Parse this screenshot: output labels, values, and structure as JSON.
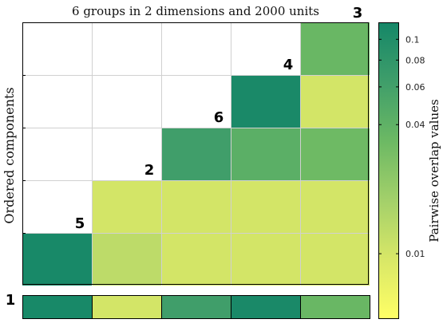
{
  "chart_data": {
    "type": "heatmap",
    "title": "6 groups in 2 dimensions and 2000 units",
    "ylabel": "Ordered components",
    "colorbar_label": "Pairwise overlap values",
    "colorbar_ticks": [
      "0.01",
      "0.04",
      "0.06",
      "0.08",
      "0.1"
    ],
    "colorbar_tick_values": [
      0.01,
      0.04,
      0.06,
      0.08,
      0.1
    ],
    "colorbar_range": [
      0.005,
      0.12
    ],
    "grid": true,
    "component_order": [
      1,
      5,
      2,
      6,
      4,
      3
    ],
    "component_labels": [
      "1",
      "5",
      "2",
      "6",
      "4",
      "3"
    ],
    "rows_top_to_bottom": [
      [
        null,
        null,
        null,
        null,
        0.035
      ],
      [
        null,
        null,
        null,
        0.112,
        0.01
      ],
      [
        null,
        null,
        0.063,
        0.043,
        0.033
      ],
      [
        null,
        0.01,
        0.01,
        0.01,
        0.01
      ],
      [
        0.115,
        0.013,
        0.01,
        0.01,
        0.01
      ]
    ],
    "bottom_strip": [
      0.115,
      0.01,
      0.063,
      0.112,
      0.035
    ]
  },
  "colors": {
    "scale": [
      "#ffff66",
      "#d8e767",
      "#a3d06a",
      "#6cb964",
      "#3f9e6a",
      "#158768"
    ],
    "grid": "#d0d0d0",
    "frame": "#000000"
  }
}
